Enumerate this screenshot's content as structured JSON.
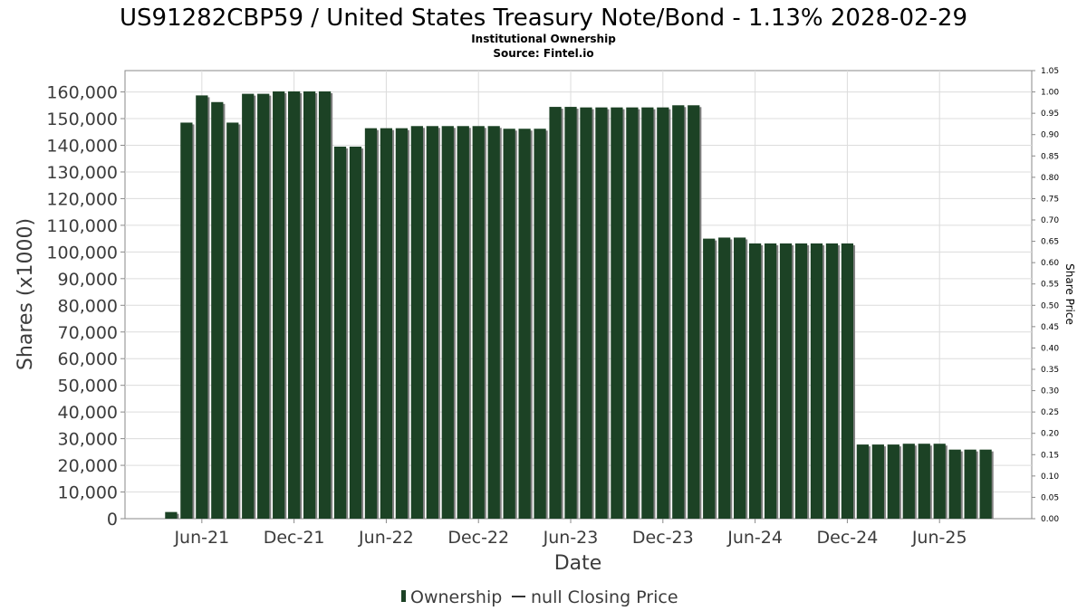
{
  "chart_data": {
    "type": "bar",
    "title": "US91282CBP59 / United States Treasury Note/Bond - 1.13% 2028-02-29",
    "subtitle_lines": [
      "Institutional Ownership",
      "Source: Fintel.io"
    ],
    "xlabel": "Date",
    "ylabel": "Shares (x1000)",
    "y2label": "Share Price",
    "ylim": [
      0,
      168000
    ],
    "y2lim": [
      0,
      1.05
    ],
    "y_ticks": [
      0,
      10000,
      20000,
      30000,
      40000,
      50000,
      60000,
      70000,
      80000,
      90000,
      100000,
      110000,
      120000,
      130000,
      140000,
      150000,
      160000
    ],
    "y_tick_labels": [
      "0",
      "10,000",
      "20,000",
      "30,000",
      "40,000",
      "50,000",
      "60,000",
      "70,000",
      "80,000",
      "90,000",
      "100,000",
      "110,000",
      "120,000",
      "130,000",
      "140,000",
      "150,000",
      "160,000"
    ],
    "y2_ticks": [
      0,
      0.05,
      0.1,
      0.15,
      0.2,
      0.25,
      0.3,
      0.35,
      0.4,
      0.45,
      0.5,
      0.55,
      0.6,
      0.65,
      0.7,
      0.75,
      0.8,
      0.85,
      0.9,
      0.95,
      1.0,
      1.05
    ],
    "y2_tick_labels": [
      "0.00",
      "0.05",
      "0.10",
      "0.15",
      "0.20",
      "0.25",
      "0.30",
      "0.35",
      "0.40",
      "0.45",
      "0.50",
      "0.55",
      "0.60",
      "0.65",
      "0.70",
      "0.75",
      "0.80",
      "0.85",
      "0.90",
      "0.95",
      "1.00",
      "1.05"
    ],
    "x_range_months": [
      "2021-01",
      "2025-12"
    ],
    "x_tick_labels": [
      {
        "label": "Jun-21",
        "month": "2021-06"
      },
      {
        "label": "Dec-21",
        "month": "2021-12"
      },
      {
        "label": "Jun-22",
        "month": "2022-06"
      },
      {
        "label": "Dec-22",
        "month": "2022-12"
      },
      {
        "label": "Jun-23",
        "month": "2023-06"
      },
      {
        "label": "Dec-23",
        "month": "2023-12"
      },
      {
        "label": "Jun-24",
        "month": "2024-06"
      },
      {
        "label": "Dec-24",
        "month": "2024-12"
      },
      {
        "label": "Jun-25",
        "month": "2025-06"
      }
    ],
    "grid": true,
    "legend_position": "bottom-center",
    "series": [
      {
        "name": "Ownership",
        "color": "#1c4225",
        "shadow_color": "#808080",
        "points": [
          {
            "month": "2021-04",
            "value": 2500
          },
          {
            "month": "2021-05",
            "value": 148500
          },
          {
            "month": "2021-06",
            "value": 158700
          },
          {
            "month": "2021-07",
            "value": 156200
          },
          {
            "month": "2021-08",
            "value": 148500
          },
          {
            "month": "2021-09",
            "value": 159300
          },
          {
            "month": "2021-10",
            "value": 159300
          },
          {
            "month": "2021-11",
            "value": 160200
          },
          {
            "month": "2021-12",
            "value": 160200
          },
          {
            "month": "2022-01",
            "value": 160200
          },
          {
            "month": "2022-02",
            "value": 160200
          },
          {
            "month": "2022-03",
            "value": 139500
          },
          {
            "month": "2022-04",
            "value": 139500
          },
          {
            "month": "2022-05",
            "value": 146400
          },
          {
            "month": "2022-06",
            "value": 146400
          },
          {
            "month": "2022-07",
            "value": 146400
          },
          {
            "month": "2022-08",
            "value": 147200
          },
          {
            "month": "2022-09",
            "value": 147200
          },
          {
            "month": "2022-10",
            "value": 147200
          },
          {
            "month": "2022-11",
            "value": 147200
          },
          {
            "month": "2022-12",
            "value": 147200
          },
          {
            "month": "2023-01",
            "value": 147200
          },
          {
            "month": "2023-02",
            "value": 146200
          },
          {
            "month": "2023-03",
            "value": 146200
          },
          {
            "month": "2023-04",
            "value": 146200
          },
          {
            "month": "2023-05",
            "value": 154400
          },
          {
            "month": "2023-06",
            "value": 154400
          },
          {
            "month": "2023-07",
            "value": 154200
          },
          {
            "month": "2023-08",
            "value": 154200
          },
          {
            "month": "2023-09",
            "value": 154200
          },
          {
            "month": "2023-10",
            "value": 154200
          },
          {
            "month": "2023-11",
            "value": 154200
          },
          {
            "month": "2023-12",
            "value": 154200
          },
          {
            "month": "2024-01",
            "value": 155000
          },
          {
            "month": "2024-02",
            "value": 155000
          },
          {
            "month": "2024-03",
            "value": 105000
          },
          {
            "month": "2024-04",
            "value": 105400
          },
          {
            "month": "2024-05",
            "value": 105400
          },
          {
            "month": "2024-06",
            "value": 103200
          },
          {
            "month": "2024-07",
            "value": 103200
          },
          {
            "month": "2024-08",
            "value": 103200
          },
          {
            "month": "2024-09",
            "value": 103200
          },
          {
            "month": "2024-10",
            "value": 103200
          },
          {
            "month": "2024-11",
            "value": 103200
          },
          {
            "month": "2024-12",
            "value": 103200
          },
          {
            "month": "2025-01",
            "value": 27800
          },
          {
            "month": "2025-02",
            "value": 27800
          },
          {
            "month": "2025-03",
            "value": 27800
          },
          {
            "month": "2025-04",
            "value": 28100
          },
          {
            "month": "2025-05",
            "value": 28100
          },
          {
            "month": "2025-06",
            "value": 28100
          },
          {
            "month": "2025-07",
            "value": 25900
          },
          {
            "month": "2025-08",
            "value": 25900
          },
          {
            "month": "2025-09",
            "value": 25900
          }
        ]
      },
      {
        "name": "null Closing Price",
        "color": "#333333",
        "points": []
      }
    ],
    "legend": [
      {
        "label": "Ownership",
        "marker": "bar",
        "color": "#1c4225"
      },
      {
        "label": "null Closing Price",
        "marker": "line",
        "color": "#333333"
      }
    ]
  },
  "colors": {
    "plot_border": "#8a8a8a",
    "grid": "#dcdcdc",
    "text": "#000000",
    "axis_text": "#3c3c3c"
  }
}
